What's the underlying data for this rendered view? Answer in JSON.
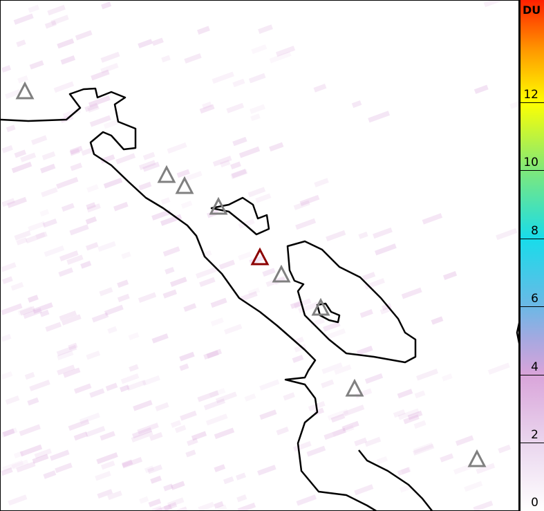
{
  "colorbar": {
    "unit": "DU",
    "ticks": [
      "0",
      "2",
      "4",
      "6",
      "8",
      "10",
      "12"
    ],
    "range": [
      0,
      15
    ],
    "colors": [
      "#ffffff",
      "#d9a4da",
      "#6cb8e6",
      "#18dcea",
      "#7fe87a",
      "#ffff00",
      "#ff9a00",
      "#ff2000"
    ]
  },
  "map": {
    "coastline_color": "#000000",
    "volcano_marker_color": "#808080",
    "active_volcano_color": "#8b0000",
    "volcano_count": 9,
    "active_volcano_count": 1
  }
}
